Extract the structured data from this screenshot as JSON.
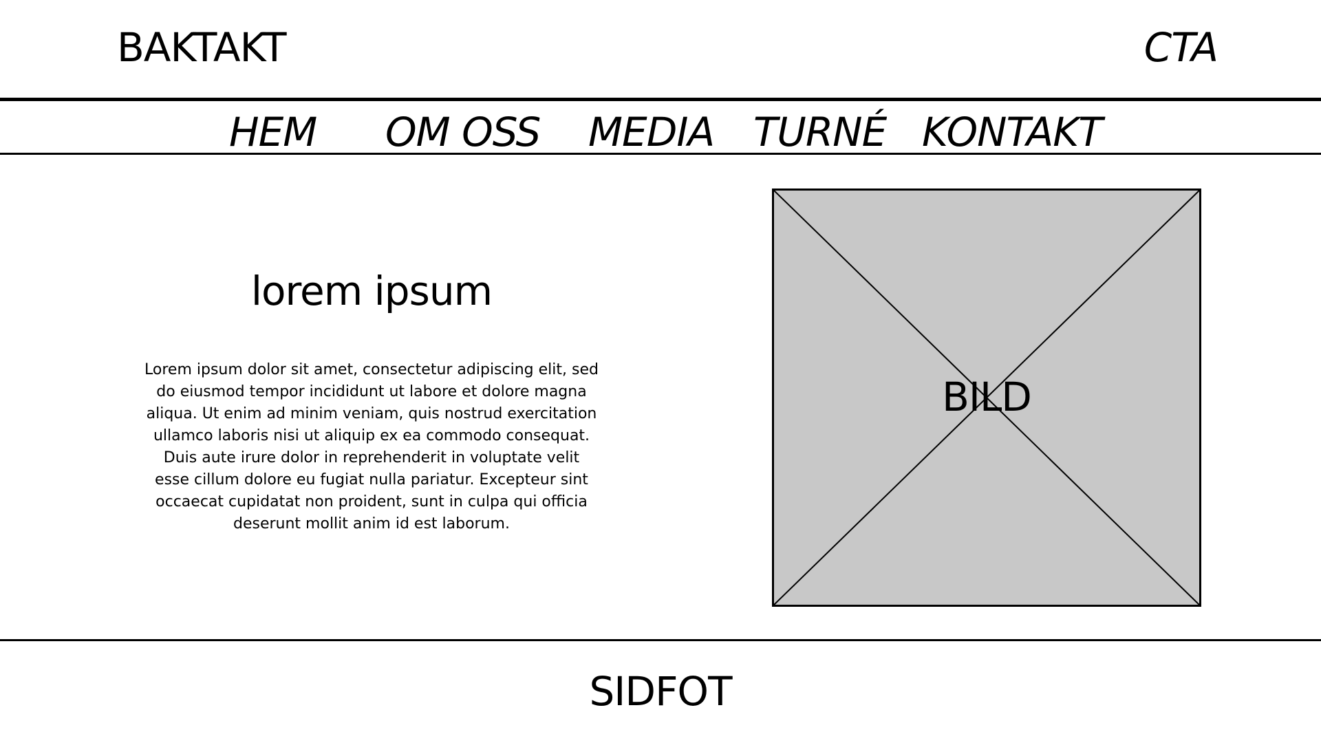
{
  "header": {
    "logo": "BAKTAKT",
    "cta": "CTA"
  },
  "nav": {
    "items": [
      {
        "label": "HEM"
      },
      {
        "label": "OM OSS"
      },
      {
        "label": "MEDIA"
      },
      {
        "label": "TURNÉ"
      },
      {
        "label": "KONTAKT"
      }
    ]
  },
  "main": {
    "title": "lorem ipsum",
    "body": "Lorem ipsum dolor sit amet, consectetur adipiscing elit, sed do eiusmod tempor incididunt ut labore et dolore magna aliqua. Ut enim ad minim veniam, quis nostrud exercitation ullamco laboris nisi ut aliquip ex ea commodo consequat. Duis aute irure dolor in reprehenderit in voluptate velit esse cillum dolore eu fugiat nulla pariatur. Excepteur sint occaecat cupidatat non proident, sunt in culpa qui officia deserunt mollit anim id est laborum.",
    "image_label": "BILD",
    "image_fill": "#c8c8c8"
  },
  "footer": {
    "label": "SIDFOT"
  }
}
